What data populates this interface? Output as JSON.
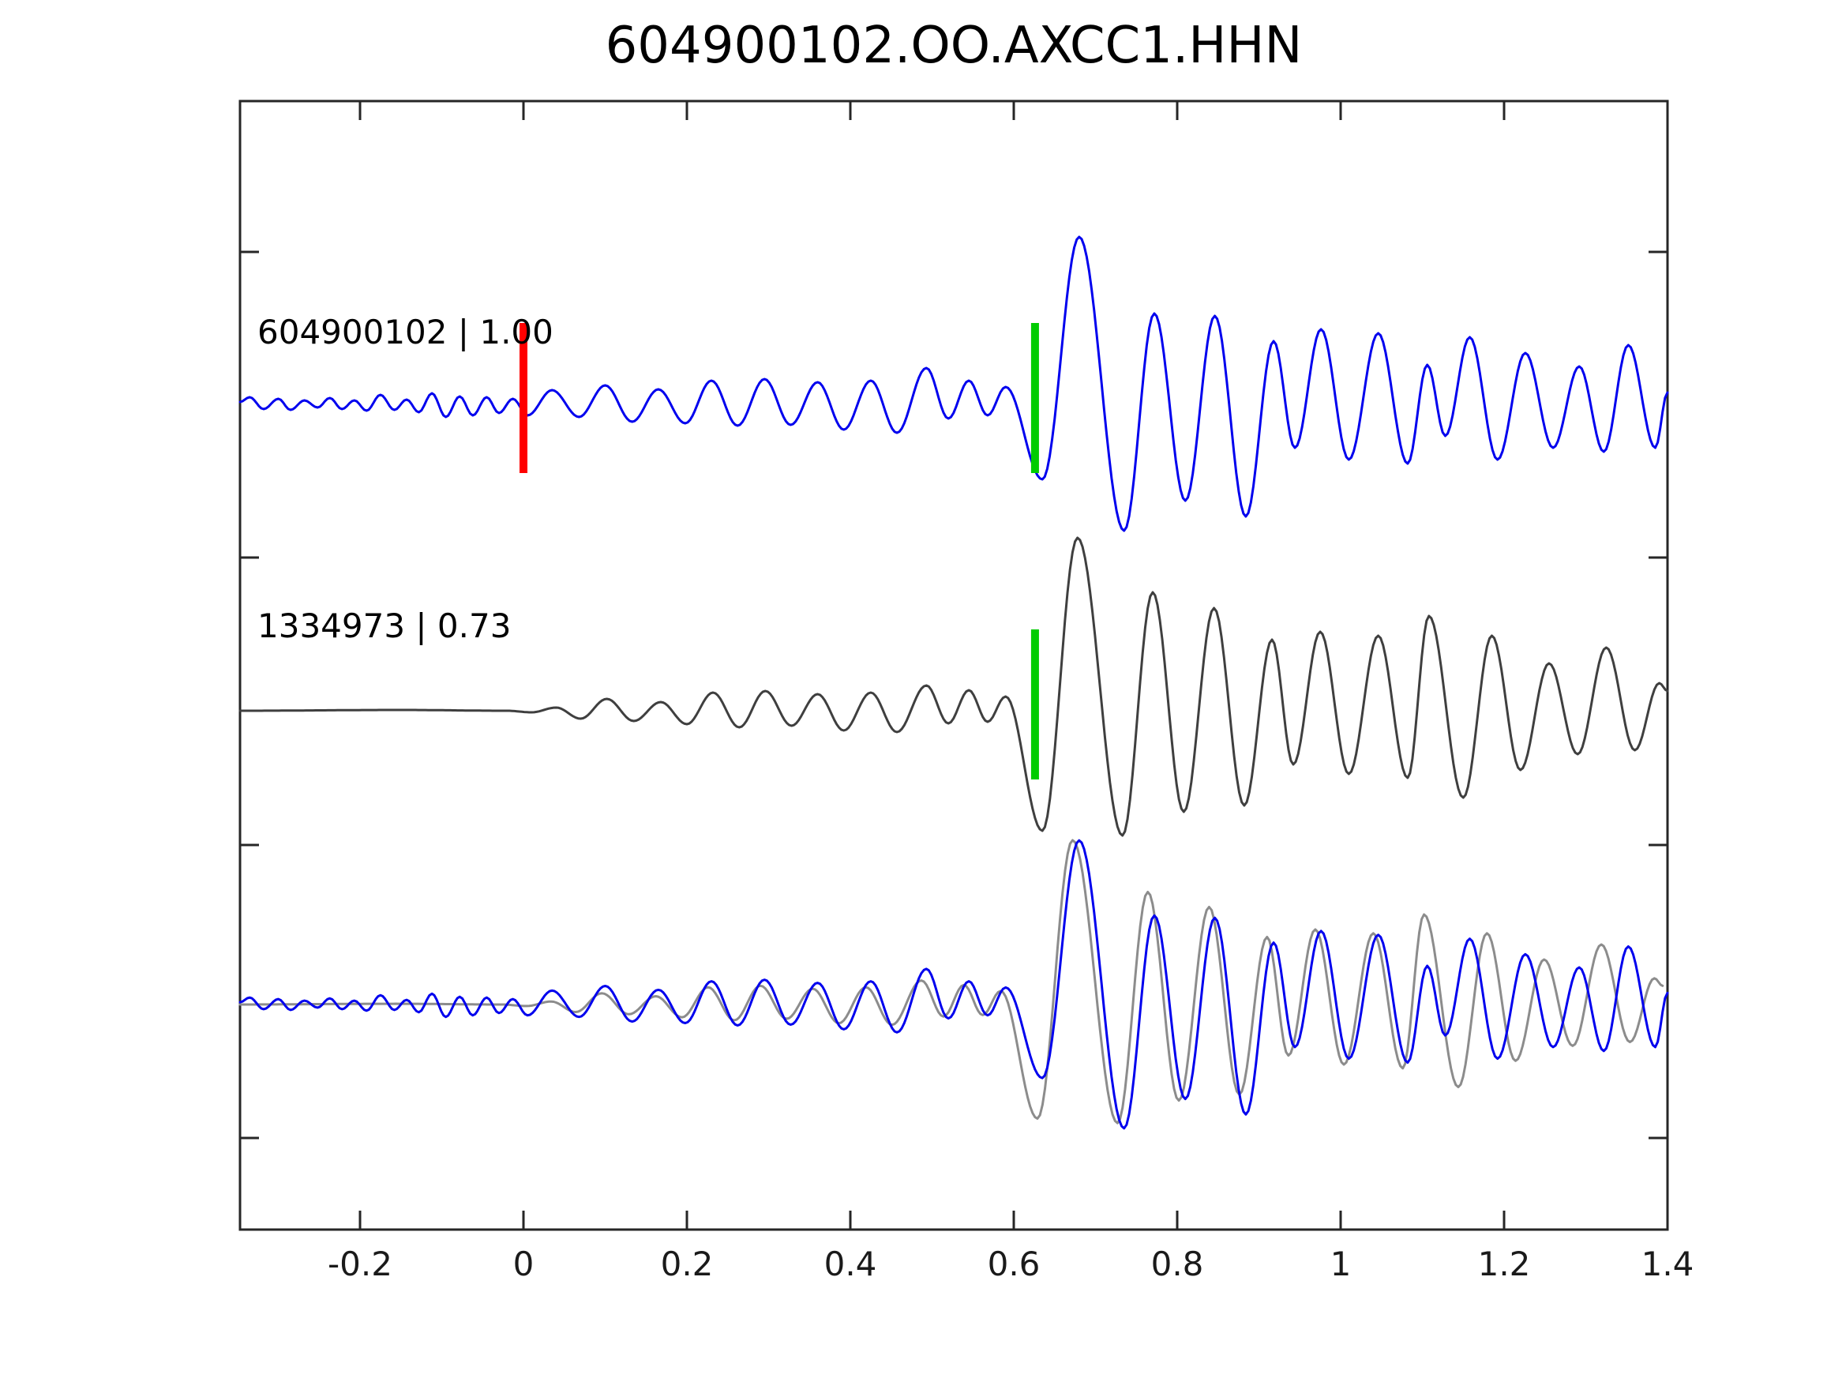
{
  "title": "604900102.OO.AXCC1.HHN",
  "chart_data": {
    "type": "line",
    "title": "604900102.OO.AXCC1.HHN",
    "xlabel": "",
    "ylabel": "",
    "xlim": [
      -0.347,
      1.4
    ],
    "grid": false,
    "legend": "none",
    "xticks": {
      "labels": [
        "-0.2",
        "0",
        "0.2",
        "0.4",
        "0.6",
        "0.8",
        "1",
        "1.2",
        "1.4"
      ],
      "values": [
        -0.2,
        0,
        0.2,
        0.4,
        0.6,
        0.8,
        1.0,
        1.2,
        1.4
      ]
    },
    "amplitude_units": "pixels_up_from_trace_baseline",
    "series": [
      {
        "name": "detection-604900102",
        "label": "604900102 | 1.00",
        "id": "604900102",
        "correlation": "1.00",
        "color": "#0000EE",
        "row": 0,
        "extrema": [
          [
            -0.347,
            3
          ],
          [
            -0.335,
            9
          ],
          [
            -0.318,
            -6
          ],
          [
            -0.3,
            7
          ],
          [
            -0.285,
            -7
          ],
          [
            -0.268,
            5
          ],
          [
            -0.252,
            -4
          ],
          [
            -0.237,
            8
          ],
          [
            -0.222,
            -6
          ],
          [
            -0.207,
            5
          ],
          [
            -0.192,
            -8
          ],
          [
            -0.175,
            12
          ],
          [
            -0.158,
            -7
          ],
          [
            -0.143,
            6
          ],
          [
            -0.128,
            -10
          ],
          [
            -0.112,
            14
          ],
          [
            -0.095,
            -16
          ],
          [
            -0.078,
            10
          ],
          [
            -0.062,
            -14
          ],
          [
            -0.045,
            9
          ],
          [
            -0.03,
            -11
          ],
          [
            -0.013,
            7
          ],
          [
            0.005,
            -14
          ],
          [
            0.035,
            18
          ],
          [
            0.068,
            -16
          ],
          [
            0.1,
            24
          ],
          [
            0.133,
            -22
          ],
          [
            0.165,
            19
          ],
          [
            0.198,
            -24
          ],
          [
            0.23,
            30
          ],
          [
            0.262,
            -27
          ],
          [
            0.295,
            32
          ],
          [
            0.327,
            -26
          ],
          [
            0.36,
            28
          ],
          [
            0.392,
            -32
          ],
          [
            0.425,
            30
          ],
          [
            0.457,
            -36
          ],
          [
            0.493,
            46
          ],
          [
            0.52,
            -18
          ],
          [
            0.545,
            30
          ],
          [
            0.568,
            -14
          ],
          [
            0.59,
            22
          ],
          [
            0.635,
            -95
          ],
          [
            0.68,
            212
          ],
          [
            0.735,
            -160
          ],
          [
            0.772,
            115
          ],
          [
            0.81,
            -122
          ],
          [
            0.846,
            112
          ],
          [
            0.884,
            -142
          ],
          [
            0.918,
            80
          ],
          [
            0.944,
            -55
          ],
          [
            0.976,
            95
          ],
          [
            1.01,
            -70
          ],
          [
            1.046,
            90
          ],
          [
            1.082,
            -75
          ],
          [
            1.106,
            50
          ],
          [
            1.128,
            -40
          ],
          [
            1.158,
            85
          ],
          [
            1.192,
            -70
          ],
          [
            1.226,
            65
          ],
          [
            1.26,
            -55
          ],
          [
            1.292,
            48
          ],
          [
            1.322,
            -60
          ],
          [
            1.352,
            75
          ],
          [
            1.385,
            -55
          ],
          [
            1.4,
            15
          ]
        ]
      },
      {
        "name": "template-1334973",
        "label": "1334973 | 0.73",
        "id": "1334973",
        "correlation": "0.73",
        "color": "#3F3F3F",
        "row": 1,
        "extrema": [
          [
            -0.347,
            0
          ],
          [
            -0.15,
            1
          ],
          [
            -0.02,
            0
          ],
          [
            0.01,
            -2
          ],
          [
            0.04,
            4
          ],
          [
            0.07,
            -10
          ],
          [
            0.102,
            15
          ],
          [
            0.135,
            -13
          ],
          [
            0.168,
            11
          ],
          [
            0.2,
            -17
          ],
          [
            0.232,
            23
          ],
          [
            0.264,
            -21
          ],
          [
            0.296,
            25
          ],
          [
            0.328,
            -19
          ],
          [
            0.36,
            21
          ],
          [
            0.392,
            -25
          ],
          [
            0.425,
            23
          ],
          [
            0.457,
            -27
          ],
          [
            0.493,
            32
          ],
          [
            0.52,
            -16
          ],
          [
            0.545,
            26
          ],
          [
            0.568,
            -14
          ],
          [
            0.59,
            18
          ],
          [
            0.635,
            -152
          ],
          [
            0.678,
            219
          ],
          [
            0.733,
            -158
          ],
          [
            0.77,
            150
          ],
          [
            0.808,
            -128
          ],
          [
            0.845,
            130
          ],
          [
            0.882,
            -120
          ],
          [
            0.916,
            90
          ],
          [
            0.942,
            -68
          ],
          [
            0.975,
            100
          ],
          [
            1.01,
            -80
          ],
          [
            1.046,
            95
          ],
          [
            1.082,
            -85
          ],
          [
            1.108,
            120
          ],
          [
            1.15,
            -110
          ],
          [
            1.185,
            95
          ],
          [
            1.22,
            -75
          ],
          [
            1.255,
            60
          ],
          [
            1.29,
            -55
          ],
          [
            1.325,
            80
          ],
          [
            1.36,
            -50
          ],
          [
            1.39,
            35
          ],
          [
            1.4,
            25
          ]
        ]
      },
      {
        "name": "overlay-template-gray",
        "label": "",
        "color": "#8C8C8C",
        "row": 2,
        "ref": 1,
        "scale": 0.95,
        "tshift": -0.006
      },
      {
        "name": "overlay-detection-blue",
        "label": "",
        "color": "#0000EE",
        "row": 2,
        "ref": 0,
        "scale": 0.98
      }
    ],
    "markers": [
      {
        "name": "template-start-pick",
        "color": "#FF0000",
        "x": 0.0,
        "row": 0
      },
      {
        "name": "phase-pick-detection",
        "color": "#00CC00",
        "x": 0.626,
        "row": 0
      },
      {
        "name": "phase-pick-template",
        "color": "#00CC00",
        "x": 0.626,
        "row": 1
      }
    ]
  }
}
